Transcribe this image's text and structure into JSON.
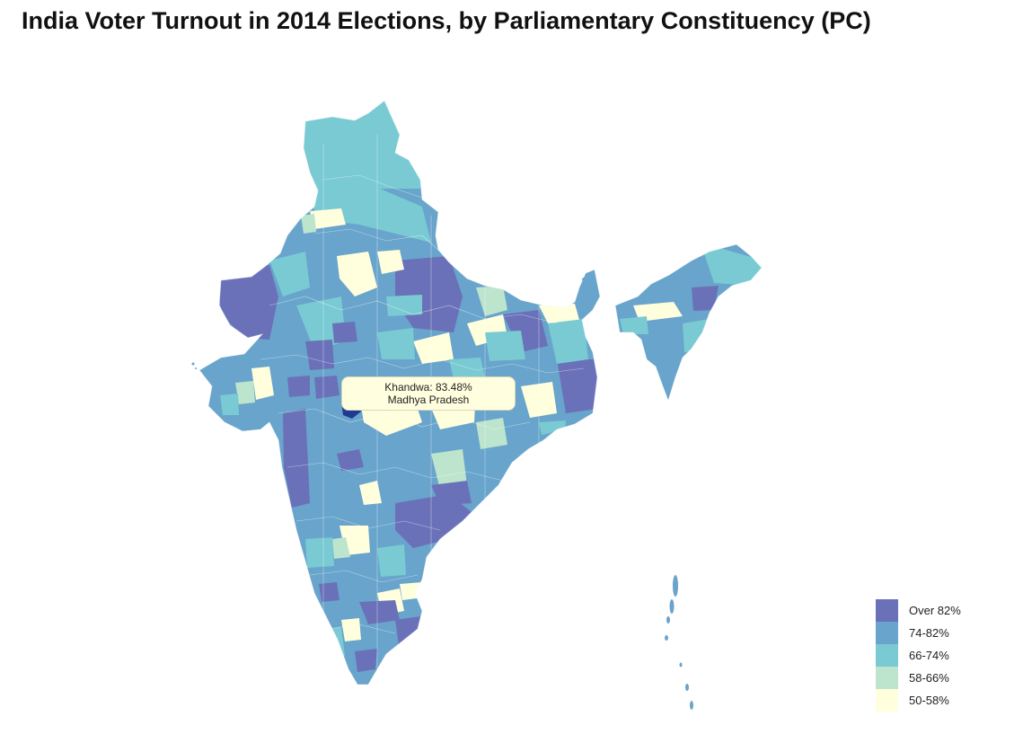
{
  "title": "India Voter Turnout in 2014 Elections, by Parliamentary Constituency (PC)",
  "tooltip": {
    "line1": "Khandwa: 83.48%",
    "line2": "Madhya Pradesh"
  },
  "legend": [
    {
      "label": "Over 82%",
      "color": "#6b71b8"
    },
    {
      "label": "74-82%",
      "color": "#68a4cb"
    },
    {
      "label": "66-74%",
      "color": "#79cad3"
    },
    {
      "label": "58-66%",
      "color": "#bde4cd"
    },
    {
      "label": "50-58%",
      "color": "#ffffdd"
    }
  ],
  "highlight_color": "#1f3a93"
}
